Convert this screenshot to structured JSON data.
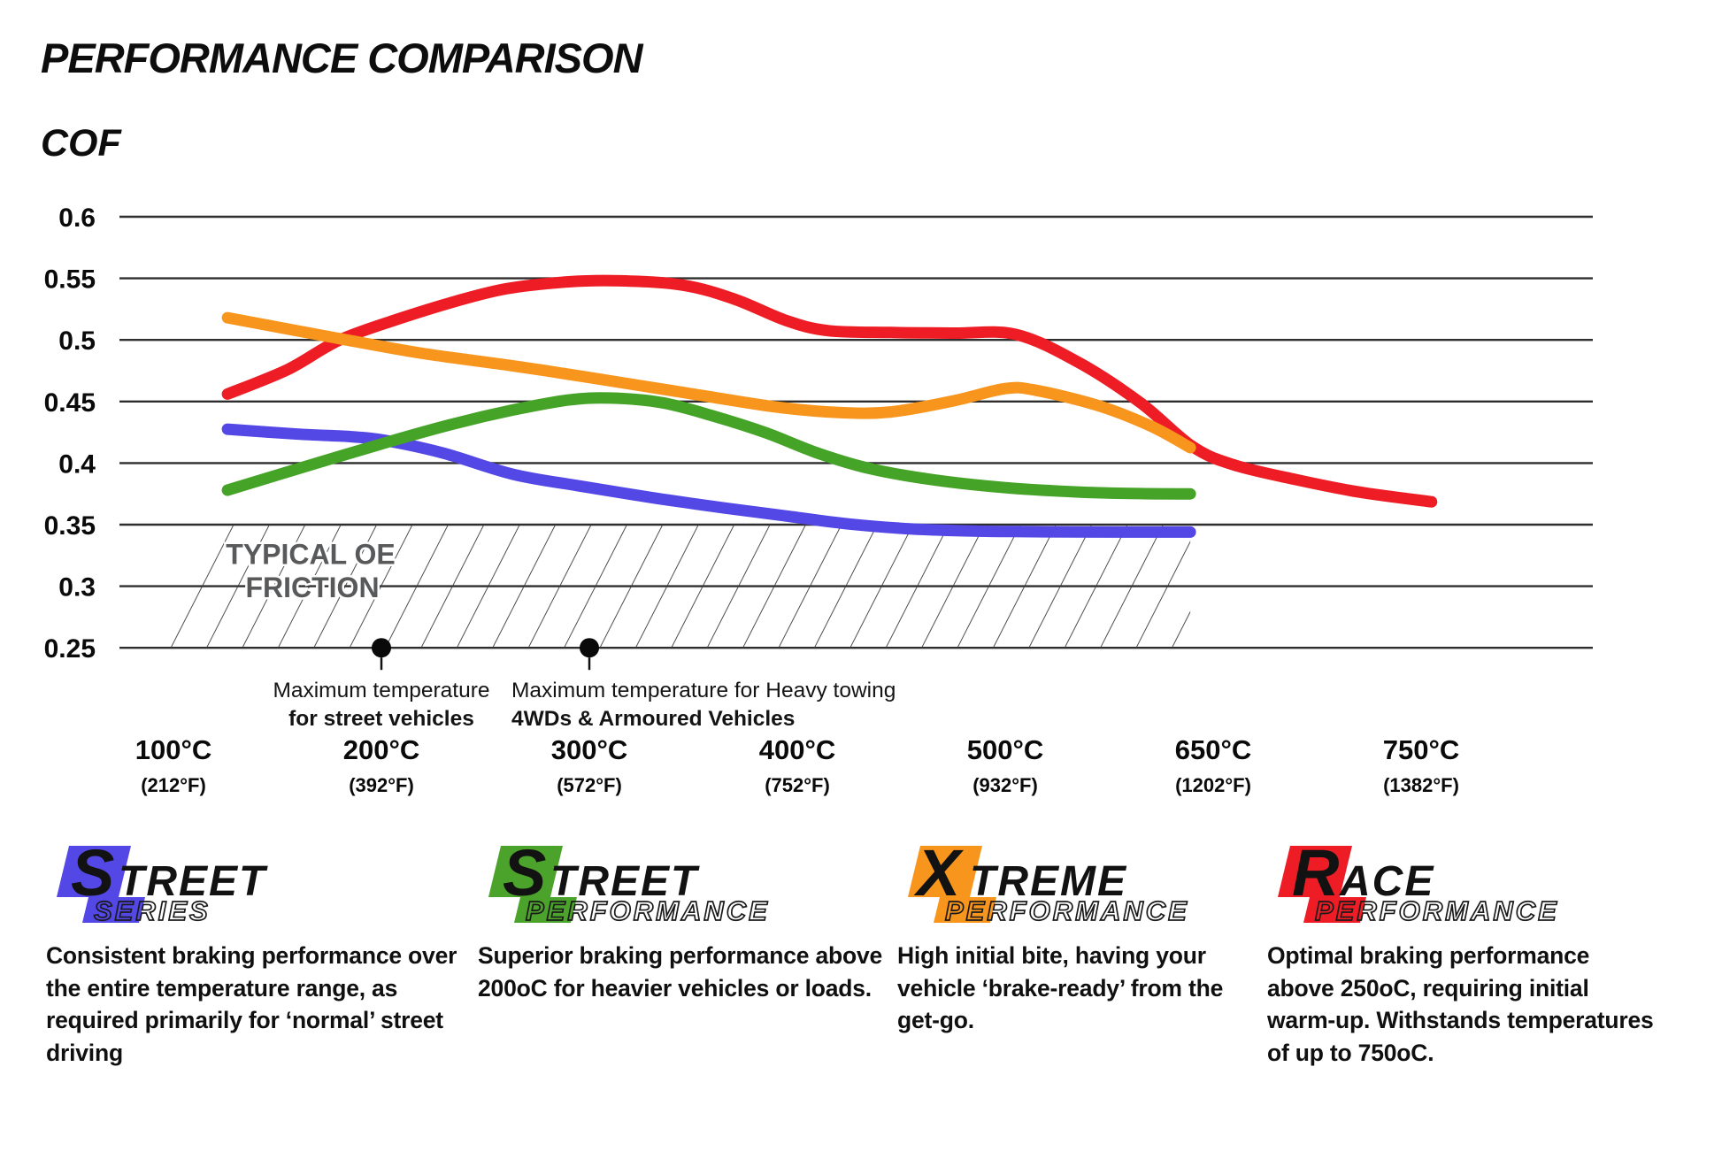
{
  "page": {
    "title": "PERFORMANCE COMPARISON",
    "y_axis_name": "COF"
  },
  "chart_data": {
    "type": "line",
    "title": "PERFORMANCE COMPARISON",
    "ylabel": "COF",
    "grid": "horizontal-only",
    "ylim": [
      0.25,
      0.6
    ],
    "y_ticks": [
      0.6,
      0.55,
      0.5,
      0.45,
      0.4,
      0.35,
      0.3,
      0.25
    ],
    "x_ticks": [
      {
        "celsius": "100°C",
        "fahrenheit": "(212°F)"
      },
      {
        "celsius": "200°C",
        "fahrenheit": "(392°F)"
      },
      {
        "celsius": "300°C",
        "fahrenheit": "(572°F)"
      },
      {
        "celsius": "400°C",
        "fahrenheit": "(752°F)"
      },
      {
        "celsius": "500°C",
        "fahrenheit": "(932°F)"
      },
      {
        "celsius": "650°C",
        "fahrenheit": "(1202°F)"
      },
      {
        "celsius": "750°C",
        "fahrenheit": "(1382°F)"
      }
    ],
    "x_unit_note": "series x values are tick-index units: 0=100°C, 1=200°C, 2=300°C, 3=400°C, 4=500°C, 5=650°C, 6=750°C",
    "series": [
      {
        "name": "Street Series",
        "color": "#5347e6",
        "points": [
          [
            0.26,
            0.4275
          ],
          [
            0.6,
            0.4235
          ],
          [
            0.85,
            0.4215
          ],
          [
            1.03,
            0.418
          ],
          [
            1.3,
            0.408
          ],
          [
            1.63,
            0.391
          ],
          [
            1.95,
            0.3815
          ],
          [
            2.3,
            0.372
          ],
          [
            2.65,
            0.3635
          ],
          [
            2.95,
            0.357
          ],
          [
            3.25,
            0.3505
          ],
          [
            3.55,
            0.3465
          ],
          [
            3.85,
            0.3448
          ],
          [
            4.2,
            0.3442
          ],
          [
            4.55,
            0.344
          ],
          [
            4.89,
            0.344
          ]
        ]
      },
      {
        "name": "Street Performance",
        "color": "#45a327",
        "points": [
          [
            0.26,
            0.378
          ],
          [
            0.65,
            0.398
          ],
          [
            1.03,
            0.417
          ],
          [
            1.35,
            0.432
          ],
          [
            1.63,
            0.443
          ],
          [
            1.9,
            0.4512
          ],
          [
            2.1,
            0.4528
          ],
          [
            2.35,
            0.449
          ],
          [
            2.6,
            0.438
          ],
          [
            2.85,
            0.4245
          ],
          [
            3.1,
            0.408
          ],
          [
            3.35,
            0.3955
          ],
          [
            3.65,
            0.3865
          ],
          [
            4.0,
            0.38
          ],
          [
            4.35,
            0.3765
          ],
          [
            4.65,
            0.3752
          ],
          [
            4.89,
            0.375
          ]
        ]
      },
      {
        "name": "Race Performance",
        "color": "#ee1c24",
        "points": [
          [
            0.26,
            0.456
          ],
          [
            0.55,
            0.476
          ],
          [
            0.8,
            0.5
          ],
          [
            1.1,
            0.518
          ],
          [
            1.35,
            0.531
          ],
          [
            1.6,
            0.5415
          ],
          [
            1.9,
            0.5472
          ],
          [
            2.15,
            0.548
          ],
          [
            2.45,
            0.5445
          ],
          [
            2.7,
            0.533
          ],
          [
            2.95,
            0.5155
          ],
          [
            3.15,
            0.5075
          ],
          [
            3.45,
            0.506
          ],
          [
            3.75,
            0.5055
          ],
          [
            4.05,
            0.5045
          ],
          [
            4.35,
            0.482
          ],
          [
            4.65,
            0.449
          ],
          [
            4.9,
            0.4135
          ],
          [
            5.1,
            0.3985
          ],
          [
            5.4,
            0.3865
          ],
          [
            5.7,
            0.3765
          ],
          [
            6.05,
            0.3685
          ]
        ]
      },
      {
        "name": "Xtreme Performance",
        "color": "#f8951d",
        "points": [
          [
            0.26,
            0.518
          ],
          [
            0.8,
            0.501
          ],
          [
            1.2,
            0.489
          ],
          [
            1.63,
            0.479
          ],
          [
            2.0,
            0.4695
          ],
          [
            2.5,
            0.456
          ],
          [
            2.9,
            0.4455
          ],
          [
            3.2,
            0.441
          ],
          [
            3.45,
            0.4415
          ],
          [
            3.75,
            0.4505
          ],
          [
            4.0,
            0.4605
          ],
          [
            4.15,
            0.459
          ],
          [
            4.45,
            0.4465
          ],
          [
            4.7,
            0.43
          ],
          [
            4.89,
            0.4125
          ]
        ]
      }
    ],
    "oe_zone": {
      "label_line1": "TYPICAL OE",
      "label_line2": "FRICTION",
      "cof_top": 0.35,
      "cof_bottom": 0.25,
      "x_from": 0.27,
      "x_to": 4.89,
      "hatch_color": "#3a3a3a",
      "label_color": "#58595b"
    },
    "markers": [
      {
        "at_tick": 1,
        "cof": 0.25,
        "label_line1": "Maximum temperature",
        "label_line2": "for street vehicles"
      },
      {
        "at_tick": 2,
        "cof": 0.25,
        "label_line1": "Maximum temperature for Heavy towing",
        "label_line2": "4WDs & Armoured Vehicles"
      }
    ]
  },
  "legend": [
    {
      "word1_first": "S",
      "word1_rest": "TREET",
      "word2": "SERIES",
      "color": "#5347e6",
      "description": "Consistent braking performance over the entire temperature range, as required primarily for ‘normal’ street driving"
    },
    {
      "word1_first": "S",
      "word1_rest": "TREET",
      "word2": "PERFORMANCE",
      "color": "#4ca32b",
      "description": "Superior braking performance above 200oC for heavier vehicles or loads."
    },
    {
      "word1_first": "X",
      "word1_rest": "TREME",
      "word2": "PERFORMANCE",
      "color": "#f8951d",
      "description": "High initial bite, having your vehicle ‘brake-ready’ from the get-go."
    },
    {
      "word1_first": "R",
      "word1_rest": "ACE",
      "word2": "PERFORMANCE",
      "color": "#ee1c24",
      "description": "Optimal braking performance above 250oC, requiring initial warm-up. Withstands temperatures of up to 750oC."
    }
  ]
}
